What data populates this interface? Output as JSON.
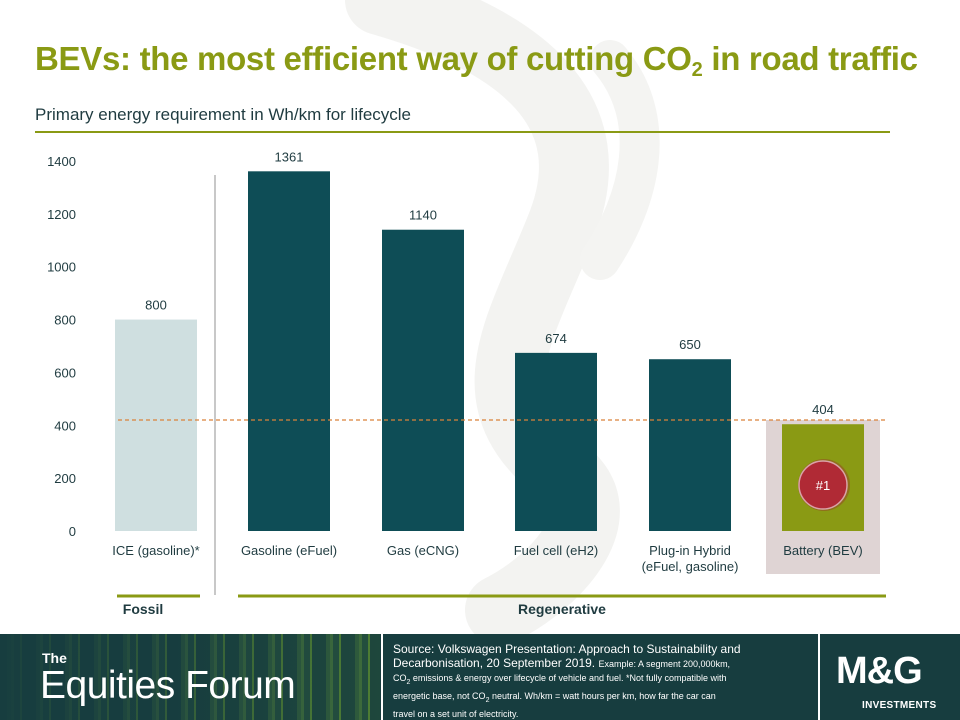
{
  "header": {
    "title_main": "BEVs: the most efficient way of cutting CO",
    "title_sub": "2",
    "title_tail": " in road traffic"
  },
  "chart_data": {
    "type": "bar",
    "title": "Primary energy requirement in Wh/km for lifecycle",
    "categories": [
      "ICE (gasoline)*",
      "Gasoline (eFuel)",
      "Gas (eCNG)",
      "Fuel cell (eH2)",
      "Plug-in Hybrid (eFuel, gasoline)",
      "Battery (BEV)"
    ],
    "category_lines": [
      [
        "ICE (gasoline)*"
      ],
      [
        "Gasoline (eFuel)"
      ],
      [
        "Gas (eCNG)"
      ],
      [
        "Fuel cell (eH2)"
      ],
      [
        "Plug-in Hybrid",
        "(eFuel, gasoline)"
      ],
      [
        "Battery (BEV)"
      ]
    ],
    "values": [
      800,
      1361,
      1140,
      674,
      650,
      404
    ],
    "data_labels": [
      "800",
      "1361",
      "1140",
      "674",
      "650",
      "404"
    ],
    "bar_colors": [
      "#cfdfe0",
      "#0e4d56",
      "#0e4d56",
      "#0e4d56",
      "#0e4d56",
      "#8a9a14"
    ],
    "ylim": [
      0,
      1400
    ],
    "yticks": [
      0,
      200,
      400,
      600,
      800,
      1000,
      1200,
      1400
    ],
    "reference_line": 420,
    "reference_color": "#d9823b",
    "highlight_index": 5,
    "highlight_badge": "#1",
    "groups": [
      {
        "label": "Fossil",
        "from": 0,
        "to": 0
      },
      {
        "label": "Regenerative",
        "from": 1,
        "to": 5
      }
    ],
    "grid": false
  },
  "footer": {
    "brand_small": "The",
    "brand_big": "Equities Forum",
    "source_line1": "Source: Volkswagen Presentation: Approach to Sustainability and",
    "source_line2": "Decarbonisation, 20 September 2019.",
    "source_example": "Example: A segment 200,000km,",
    "source_co2": "CO",
    "source_co2_sub": "2",
    "source_line3": " emissions & energy over lifecycle of vehicle and fuel. *Not fully compatible with",
    "source_line4a": "energetic base, not CO",
    "source_line4_sub": "2",
    "source_line4b": " neutral. Wh/km = watt hours per km, how far the car can",
    "source_line5": "travel on a set unit of electricity.",
    "logo": "M&G",
    "logo_sub": "INVESTMENTS"
  },
  "colors": {
    "accent": "#8a9a14",
    "bar_dark": "#0e4d56",
    "bar_light": "#cfdfe0",
    "footer_bg": "#173d3f",
    "badge": "#b02a35"
  }
}
